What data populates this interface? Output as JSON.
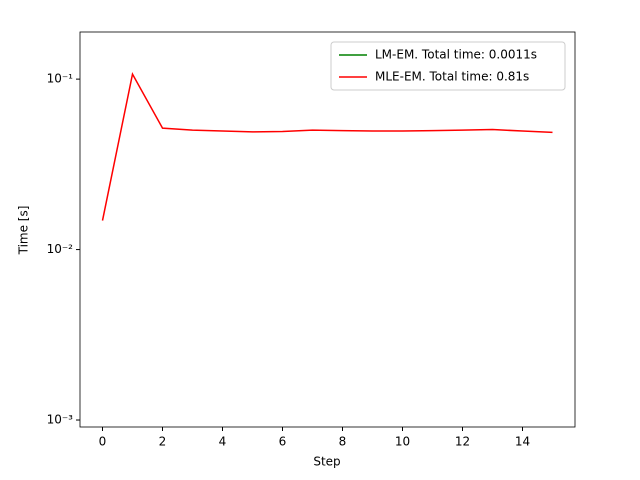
{
  "chart_data": {
    "type": "line",
    "x": [
      0,
      1,
      2,
      3,
      4,
      5,
      6,
      7,
      8,
      9,
      10,
      11,
      12,
      13,
      14,
      15
    ],
    "series": [
      {
        "name": "LM-EM. Total time: 0.0011s",
        "color": "#008000",
        "values": [
          null,
          null,
          null,
          null,
          null,
          null,
          null,
          null,
          null,
          null,
          null,
          null,
          null,
          null,
          null,
          null
        ]
      },
      {
        "name": "MLE-EM. Total time: 0.81s",
        "color": "#ff0000",
        "values": [
          0.0148,
          0.107,
          0.0516,
          0.0502,
          0.0496,
          0.049,
          0.0493,
          0.0502,
          0.0499,
          0.0496,
          0.0496,
          0.0499,
          0.0502,
          0.0506,
          0.0496,
          0.0487
        ]
      }
    ],
    "xlabel": "Step",
    "ylabel": "Time [s]",
    "xlim": [
      -0.75,
      15.75
    ],
    "xticks": [
      0,
      2,
      4,
      6,
      8,
      10,
      12,
      14
    ],
    "ylim": [
      0.00091,
      0.189
    ],
    "yscale": "log",
    "yticks": [
      {
        "value": 0.001,
        "label": "10⁻³"
      },
      {
        "value": 0.01,
        "label": "10⁻²"
      },
      {
        "value": 0.1,
        "label": "10⁻¹"
      }
    ],
    "legend": "upper right"
  }
}
